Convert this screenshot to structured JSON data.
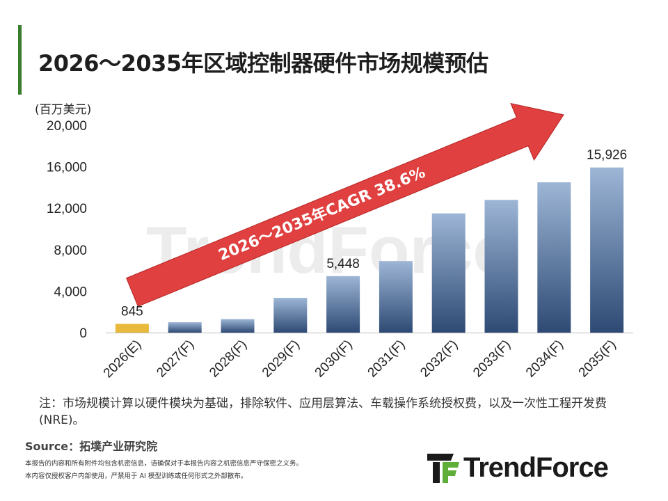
{
  "title": "2026～2035年区域控制器硬件市场规模预估",
  "chart_data": {
    "type": "bar",
    "unit_label": "(百万美元)",
    "categories": [
      "2026(E)",
      "2027(F)",
      "2028(F)",
      "2029(F)",
      "2030(F)",
      "2031(F)",
      "2032(F)",
      "2033(F)",
      "2034(F)",
      "2035(F)"
    ],
    "values": [
      845,
      1000,
      1300,
      3350,
      5448,
      6900,
      11500,
      12800,
      14500,
      15926
    ],
    "data_labels": {
      "0": "845",
      "4": "5,448",
      "9": "15,926"
    },
    "ylim": [
      0,
      20000
    ],
    "yticks": [
      "0",
      "4,000",
      "8,000",
      "12,000",
      "16,000",
      "20,000"
    ],
    "ytick_values": [
      0,
      4000,
      8000,
      12000,
      16000,
      20000
    ],
    "highlight_index": 0,
    "highlight_color": "#e8b93a",
    "bar_color_top": "#9db6d6",
    "bar_color_bottom": "#2e4a74",
    "arrow_label": "2026～2035年CAGR 38.6%",
    "arrow_color": "#e0403f",
    "grid": false
  },
  "watermark": "TrendForce",
  "note": "注：市场规模计算以硬件模块为基础，排除软件、应用层算法、车载操作系统授权费，以及一次性工程开发费(NRE)。",
  "source": "Source：拓墣产业研究院",
  "disclaimer_1": "本报告的内容和所有附件均包含机密信息，请确保对于本报告内容之机密信息严守保密之义务。",
  "disclaimer_2": "本内容仅授权客户内部使用，严禁用于 AI 模型训练或任何形式之外部散布。",
  "logo_text": "TrendForce"
}
